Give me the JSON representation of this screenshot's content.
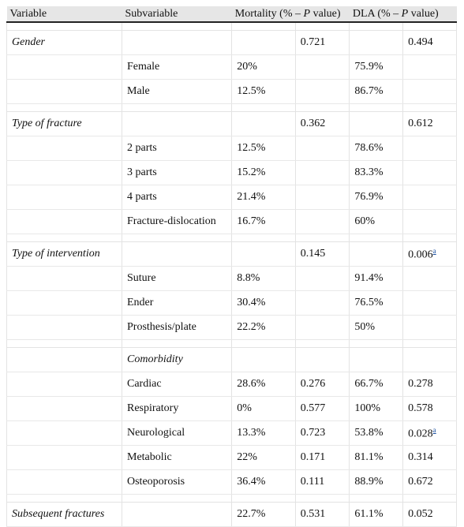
{
  "headers": [
    "Variable",
    "Subvariable",
    "Mortality (% – ",
    "P",
    " value)",
    "DLA (% – ",
    "P",
    " value)"
  ],
  "rows": [
    {
      "var": "Gender",
      "sub": "",
      "mort": "",
      "mort_p": "0.721",
      "dla": "",
      "dla_p": "0.494"
    },
    {
      "var": "",
      "sub": "Female",
      "mort": "20%",
      "mort_p": "",
      "dla": "75.9%",
      "dla_p": ""
    },
    {
      "var": "",
      "sub": "Male",
      "mort": "12.5%",
      "mort_p": "",
      "dla": "86.7%",
      "dla_p": ""
    },
    {
      "var": "Type of fracture",
      "sub": "",
      "mort": "",
      "mort_p": "0.362",
      "dla": "",
      "dla_p": "0.612"
    },
    {
      "var": "",
      "sub": "2 parts",
      "mort": "12.5%",
      "mort_p": "",
      "dla": "78.6%",
      "dla_p": ""
    },
    {
      "var": "",
      "sub": "3 parts",
      "mort": "15.2%",
      "mort_p": "",
      "dla": "83.3%",
      "dla_p": ""
    },
    {
      "var": "",
      "sub": "4 parts",
      "mort": "21.4%",
      "mort_p": "",
      "dla": "76.9%",
      "dla_p": ""
    },
    {
      "var": "",
      "sub": "Fracture-dislocation",
      "mort": "16.7%",
      "mort_p": "",
      "dla": "60%",
      "dla_p": ""
    },
    {
      "var": "Type of intervention",
      "sub": "",
      "mort": "",
      "mort_p": "0.145",
      "dla": "",
      "dla_p": "0.006",
      "dla_p_sup": "a"
    },
    {
      "var": "",
      "sub": "Suture",
      "mort": "8.8%",
      "mort_p": "",
      "dla": "91.4%",
      "dla_p": ""
    },
    {
      "var": "",
      "sub": "Ender",
      "mort": "30.4%",
      "mort_p": "",
      "dla": "76.5%",
      "dla_p": ""
    },
    {
      "var": "",
      "sub": "Prosthesis/plate",
      "mort": "22.2%",
      "mort_p": "",
      "dla": "50%",
      "dla_p": ""
    },
    {
      "var": "",
      "sub": "Comorbidity",
      "mort": "",
      "mort_p": "",
      "dla": "",
      "dla_p": ""
    },
    {
      "var": "",
      "sub": "Cardiac",
      "mort": "28.6%",
      "mort_p": "0.276",
      "dla": "66.7%",
      "dla_p": "0.278"
    },
    {
      "var": "",
      "sub": "Respiratory",
      "mort": "0%",
      "mort_p": "0.577",
      "dla": "100%",
      "dla_p": "0.578"
    },
    {
      "var": "",
      "sub": "Neurological",
      "mort": "13.3%",
      "mort_p": "0.723",
      "dla": "53.8%",
      "dla_p": "0.028",
      "dla_p_sup": "a"
    },
    {
      "var": "",
      "sub": "Metabolic",
      "mort": "22%",
      "mort_p": "0.171",
      "dla": "81.1%",
      "dla_p": "0.314"
    },
    {
      "var": "",
      "sub": "Osteoporosis",
      "mort": "36.4%",
      "mort_p": "0.111",
      "dla": "88.9%",
      "dla_p": "0.672"
    },
    {
      "var": "Subsequent fractures",
      "sub": "",
      "mort": "22.7%",
      "mort_p": "0.531",
      "dla": "61.1%",
      "dla_p": "0.052"
    }
  ]
}
